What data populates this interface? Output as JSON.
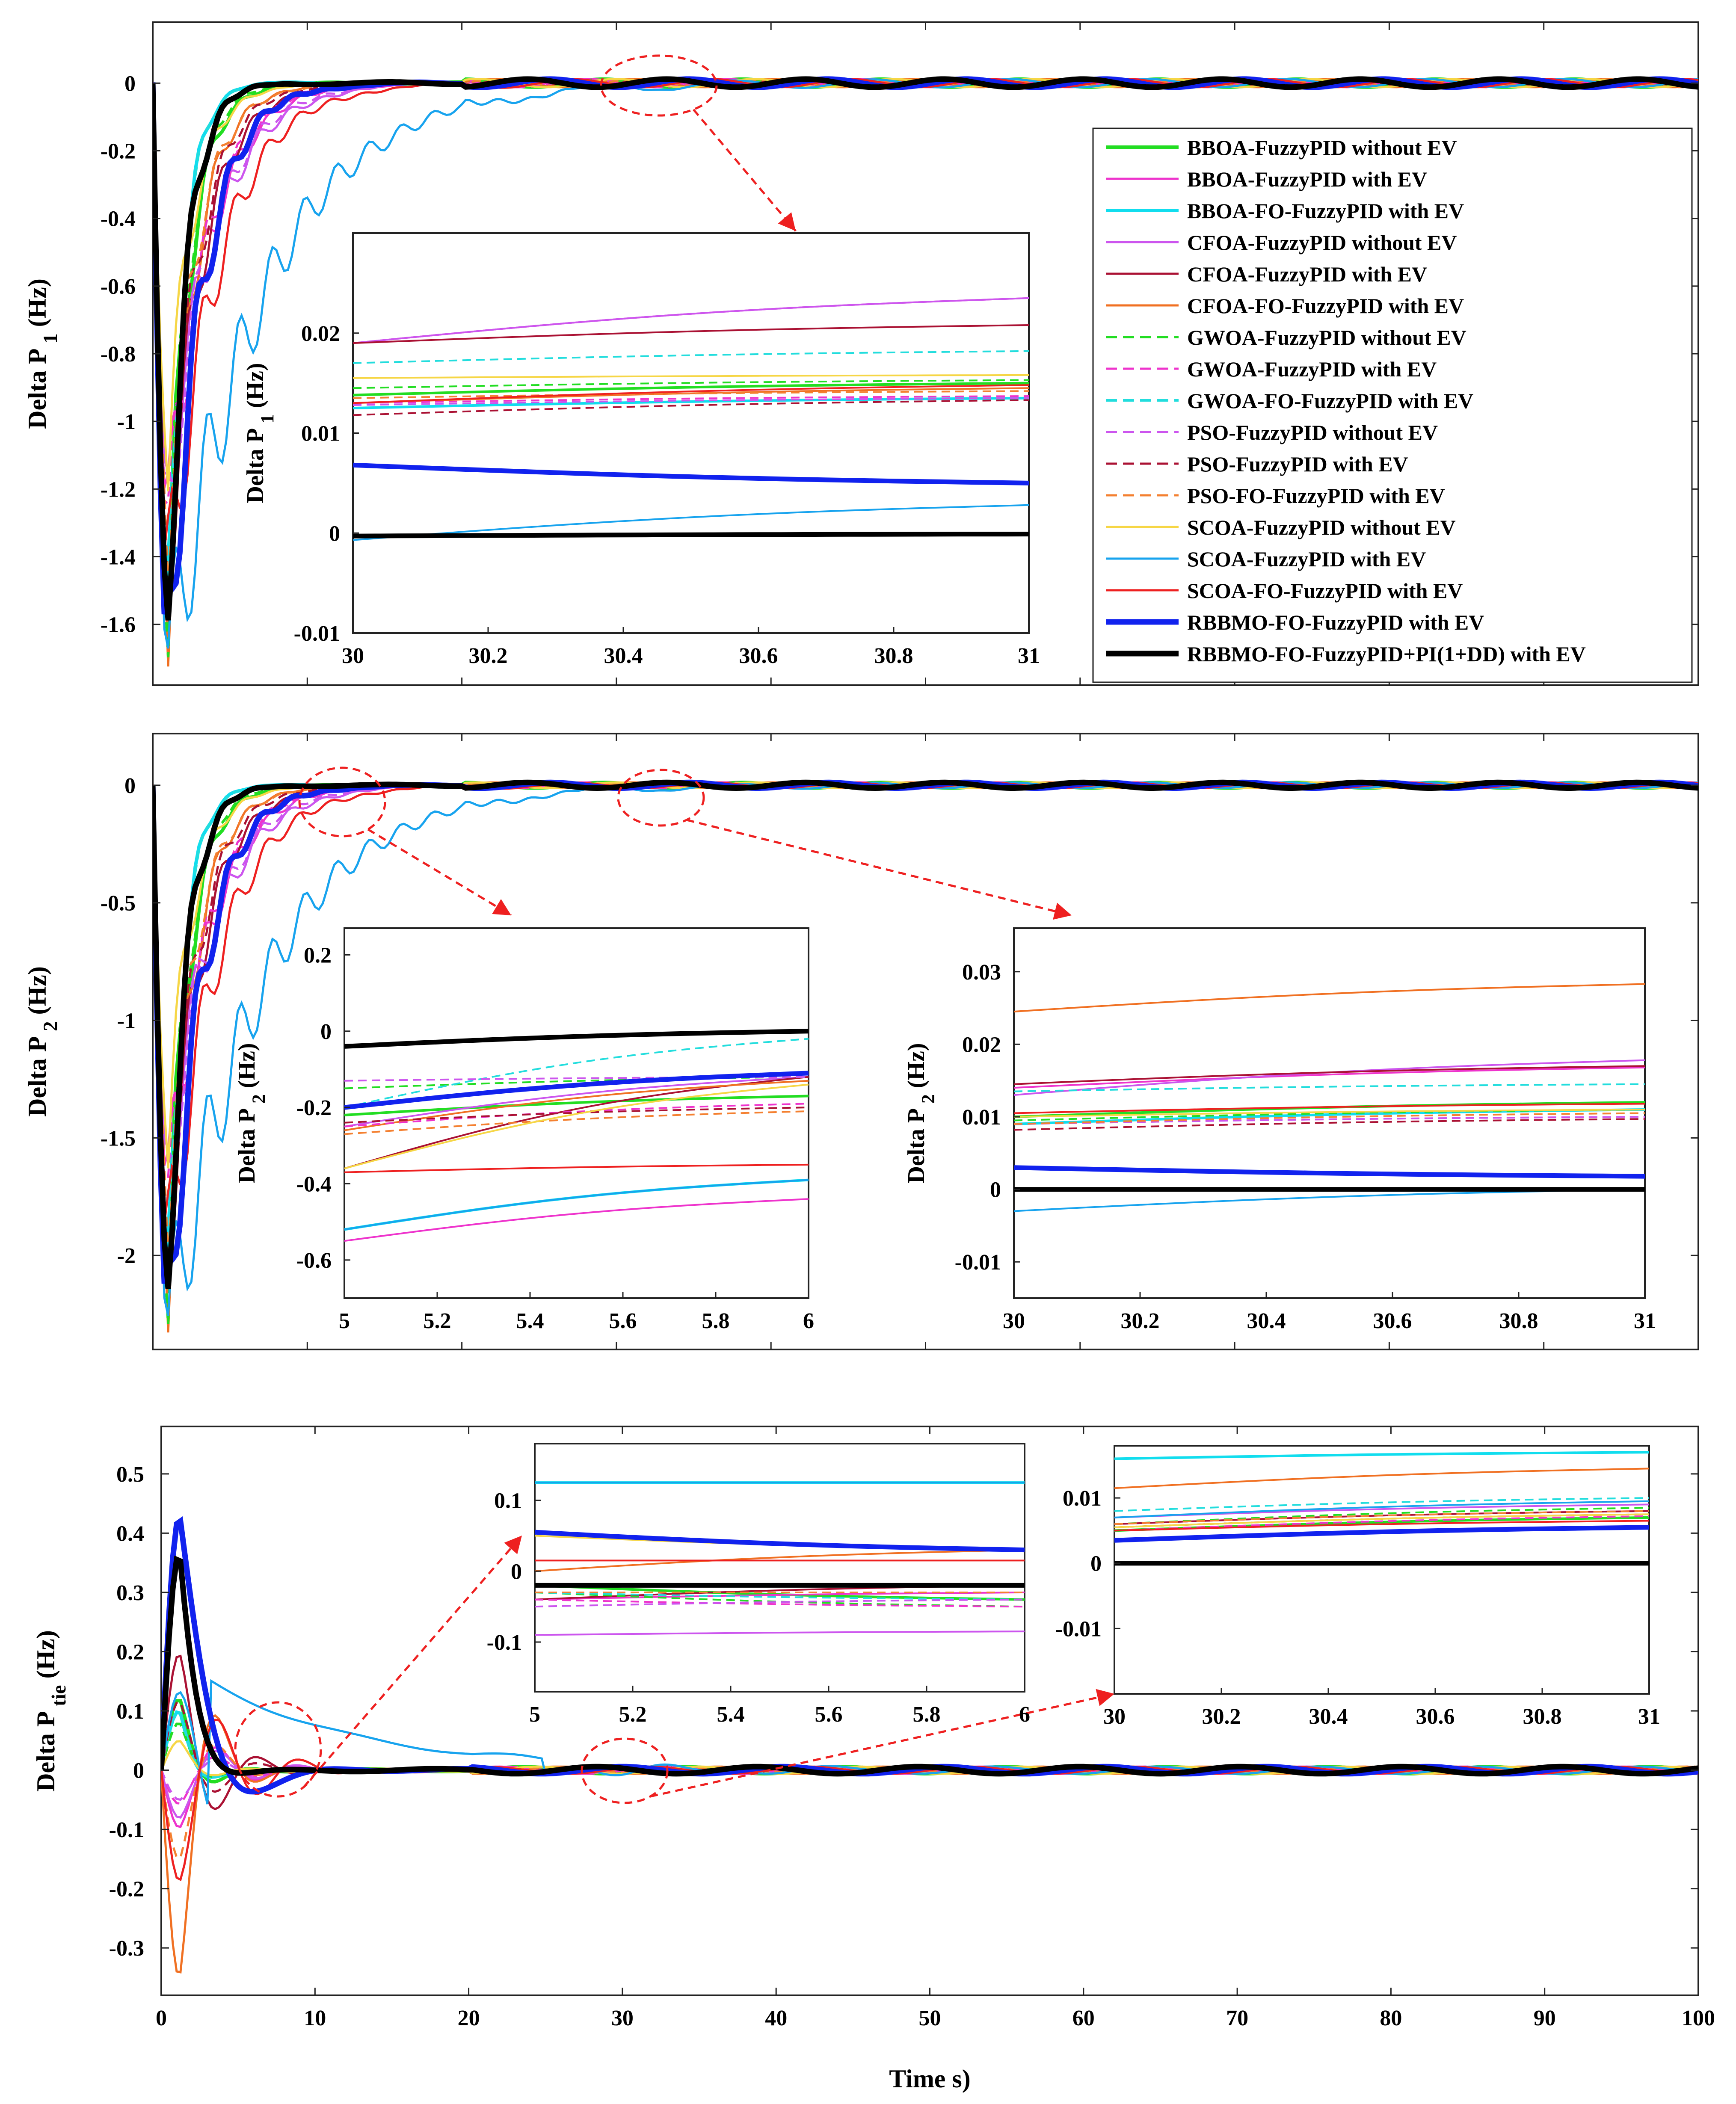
{
  "chart_data": [
    {
      "type": "line",
      "id": "delta_p1",
      "ylabel": "Delta P",
      "ylabel_sub": "1",
      "ylabel_unit": " (Hz)",
      "xlim": [
        0,
        100
      ],
      "ylim": [
        -1.78,
        0.18
      ],
      "yticks": [
        0,
        -0.2,
        -0.4,
        -0.6,
        -0.8,
        -1,
        -1.2,
        -1.4,
        -1.6
      ],
      "ytick_labels": [
        "0",
        "-0.2",
        "-0.4",
        "-0.6",
        "-0.8",
        "-1",
        "-1.2",
        "-1.4",
        "-1.6"
      ],
      "inset": {
        "ylabel": "Delta P",
        "ylabel_sub": "1",
        "ylabel_unit": " (Hz)",
        "xlim": [
          30,
          31
        ],
        "ylim": [
          -0.01,
          0.03
        ],
        "xticks": [
          30,
          30.2,
          30.4,
          30.6,
          30.8,
          31
        ],
        "xtick_labels": [
          "30",
          "30.2",
          "30.4",
          "30.6",
          "30.8",
          "31"
        ],
        "yticks": [
          0.02,
          0.01,
          0,
          -0.01
        ],
        "ytick_labels": [
          "0.02",
          "0.01",
          "0",
          "-0.01"
        ],
        "series_values": [
          [
            0.0138,
            0.015
          ],
          [
            0.019,
            0.0235
          ],
          [
            0.0125,
            0.0135
          ],
          [
            0.019,
            0.0235
          ],
          [
            0.019,
            0.0208
          ],
          [
            0.013,
            0.0145
          ],
          [
            0.0145,
            0.0153
          ],
          [
            0.013,
            0.0137
          ],
          [
            0.017,
            0.0182
          ],
          [
            0.0128,
            0.0135
          ],
          [
            0.0118,
            0.0133
          ],
          [
            0.0135,
            0.0142
          ],
          [
            0.0155,
            0.0158
          ],
          [
            -0.0007,
            0.0028
          ],
          [
            0.013,
            0.0148
          ],
          [
            0.0068,
            0.005
          ],
          [
            -0.0003,
            -0.0001
          ]
        ]
      }
    },
    {
      "type": "line",
      "id": "delta_p2",
      "ylabel": "Delta P",
      "ylabel_sub": "2",
      "ylabel_unit": " (Hz)",
      "xlim": [
        0,
        100
      ],
      "ylim": [
        -2.4,
        0.22
      ],
      "yticks": [
        0,
        -0.5,
        -1,
        -1.5,
        -2
      ],
      "ytick_labels": [
        "0",
        "-0.5",
        "-1",
        "-1.5",
        "-2"
      ],
      "insets": [
        {
          "ylabel": "Delta P",
          "ylabel_sub": "2",
          "ylabel_unit": " (Hz)",
          "xlim": [
            5,
            6
          ],
          "ylim": [
            -0.7,
            0.27
          ],
          "xticks": [
            5,
            5.2,
            5.4,
            5.6,
            5.8,
            6
          ],
          "xtick_labels": [
            "5",
            "5.2",
            "5.4",
            "5.6",
            "5.8",
            "6"
          ],
          "yticks": [
            0.2,
            0,
            -0.2,
            -0.4,
            -0.6
          ],
          "ytick_labels": [
            "0.2",
            "0",
            "-0.2",
            "-0.4",
            "-0.6"
          ],
          "series_values": [
            [
              -0.22,
              -0.17
            ],
            [
              -0.55,
              -0.44
            ],
            [
              -0.52,
              -0.39
            ],
            [
              -0.25,
              -0.12
            ],
            [
              -0.36,
              -0.12
            ],
            [
              -0.26,
              -0.13
            ],
            [
              -0.15,
              -0.12
            ],
            [
              -0.25,
              -0.19
            ],
            [
              -0.2,
              -0.02
            ],
            [
              -0.13,
              -0.12
            ],
            [
              -0.24,
              -0.2
            ],
            [
              -0.27,
              -0.21
            ],
            [
              -0.36,
              -0.14
            ],
            [
              -0.52,
              -0.39
            ],
            [
              -0.37,
              -0.35
            ],
            [
              -0.2,
              -0.11
            ],
            [
              -0.04,
              0.0
            ]
          ]
        },
        {
          "ylabel": "Delta P",
          "ylabel_sub": "2",
          "ylabel_unit": " (Hz)",
          "xlim": [
            30,
            31
          ],
          "ylim": [
            -0.015,
            0.036
          ],
          "xticks": [
            30,
            30.2,
            30.4,
            30.6,
            30.8,
            31
          ],
          "xtick_labels": [
            "30",
            "30.2",
            "30.4",
            "30.6",
            "30.8",
            "31"
          ],
          "yticks": [
            0.03,
            0.02,
            0.01,
            0,
            -0.01
          ],
          "ytick_labels": [
            "0.03",
            "0.02",
            "0.01",
            "0",
            "-0.01"
          ],
          "series_values": [
            [
              0.01,
              0.012
            ],
            [
              0.014,
              0.0168
            ],
            [
              0.009,
              0.011
            ],
            [
              0.013,
              0.0178
            ],
            [
              0.0145,
              0.017
            ],
            [
              0.0245,
              0.0283
            ],
            [
              0.0095,
              0.011
            ],
            [
              0.009,
              0.01
            ],
            [
              0.0135,
              0.0145
            ],
            [
              0.009,
              0.01
            ],
            [
              0.0082,
              0.0097
            ],
            [
              0.009,
              0.0105
            ],
            [
              0.01,
              0.011
            ],
            [
              -0.003,
              0.0
            ],
            [
              0.0105,
              0.0118
            ],
            [
              0.003,
              0.0018
            ],
            [
              0.0,
              0.0
            ]
          ]
        }
      ]
    },
    {
      "type": "line",
      "id": "delta_ptie",
      "ylabel": "Delta P",
      "ylabel_sub": "tie",
      "ylabel_unit": " (Hz)",
      "xlabel": "Time s)",
      "xlim": [
        0,
        100
      ],
      "ylim": [
        -0.38,
        0.58
      ],
      "xticks": [
        0,
        10,
        20,
        30,
        40,
        50,
        60,
        70,
        80,
        90,
        100
      ],
      "xtick_labels": [
        "0",
        "10",
        "20",
        "30",
        "40",
        "50",
        "60",
        "70",
        "80",
        "90",
        "100"
      ],
      "yticks": [
        0.5,
        0.4,
        0.3,
        0.2,
        0.1,
        0,
        -0.1,
        -0.2,
        -0.3
      ],
      "ytick_labels": [
        "0.5",
        "0.4",
        "0.3",
        "0.2",
        "0.1",
        "0",
        "-0.1",
        "-0.2",
        "-0.3"
      ],
      "insets": [
        {
          "xlim": [
            5,
            6
          ],
          "ylim": [
            -0.17,
            0.18
          ],
          "xticks": [
            5,
            5.2,
            5.4,
            5.6,
            5.8,
            6
          ],
          "xtick_labels": [
            "5",
            "5.2",
            "5.4",
            "5.6",
            "5.8",
            "6"
          ],
          "yticks": [
            0.1,
            0,
            -0.1
          ],
          "ytick_labels": [
            "0.1",
            "0",
            "-0.1"
          ],
          "series_values": [
            [
              -0.02,
              -0.04
            ],
            [
              -0.04,
              -0.03
            ],
            [
              0.125,
              0.125
            ],
            [
              -0.09,
              -0.085
            ],
            [
              -0.04,
              -0.02
            ],
            [
              0.0,
              0.03
            ],
            [
              -0.03,
              -0.05
            ],
            [
              -0.04,
              -0.05
            ],
            [
              -0.03,
              -0.04
            ],
            [
              -0.05,
              -0.04
            ],
            [
              -0.03,
              -0.03
            ],
            [
              -0.03,
              -0.03
            ],
            [
              0.05,
              0.03
            ],
            [
              0.125,
              0.125
            ],
            [
              0.015,
              0.015
            ],
            [
              0.055,
              0.03
            ],
            [
              -0.02,
              -0.02
            ]
          ]
        },
        {
          "xlim": [
            30,
            31
          ],
          "ylim": [
            -0.02,
            0.018
          ],
          "xticks": [
            30,
            30.2,
            30.4,
            30.6,
            30.8,
            31
          ],
          "xtick_labels": [
            "30",
            "30.2",
            "30.4",
            "30.6",
            "30.8",
            "31"
          ],
          "yticks": [
            0.01,
            0,
            -0.01
          ],
          "ytick_labels": [
            "0.01",
            "0",
            "-0.01"
          ],
          "series_values": [
            [
              0.005,
              0.007
            ],
            [
              0.006,
              0.008
            ],
            [
              0.016,
              0.017
            ],
            [
              0.007,
              0.009
            ],
            [
              0.006,
              0.008
            ],
            [
              0.0115,
              0.0145
            ],
            [
              0.006,
              0.0085
            ],
            [
              0.005,
              0.0072
            ],
            [
              0.008,
              0.01
            ],
            [
              0.006,
              0.008
            ],
            [
              0.0055,
              0.0075
            ],
            [
              0.006,
              0.008
            ],
            [
              0.0055,
              0.0075
            ],
            [
              0.007,
              0.0095
            ],
            [
              0.005,
              0.0065
            ],
            [
              0.0035,
              0.0055
            ],
            [
              0.0,
              0.0
            ]
          ]
        }
      ]
    }
  ],
  "series": [
    {
      "name": "BBOA-FuzzyPID without EV",
      "color": "#22dd22",
      "dash": false,
      "width": 8
    },
    {
      "name": "BBOA-FuzzyPID with EV",
      "color": "#ee33cc",
      "dash": false,
      "width": 5
    },
    {
      "name": "BBOA-FO-FuzzyPID with EV",
      "color": "#11ddee",
      "dash": false,
      "width": 8
    },
    {
      "name": "CFOA-FuzzyPID without EV",
      "color": "#cc55ee",
      "dash": false,
      "width": 5
    },
    {
      "name": "CFOA-FuzzyPID with EV",
      "color": "#aa1133",
      "dash": false,
      "width": 5
    },
    {
      "name": "CFOA-FO-FuzzyPID with EV",
      "color": "#f07022",
      "dash": false,
      "width": 5
    },
    {
      "name": "GWOA-FuzzyPID without EV",
      "color": "#22dd22",
      "dash": true,
      "width": 6
    },
    {
      "name": "GWOA-FuzzyPID with EV",
      "color": "#ee33cc",
      "dash": true,
      "width": 5
    },
    {
      "name": "GWOA-FO-FuzzyPID with EV",
      "color": "#22dddd",
      "dash": true,
      "width": 6
    },
    {
      "name": "PSO-FuzzyPID without EV",
      "color": "#cc55ee",
      "dash": true,
      "width": 5
    },
    {
      "name": "PSO-FuzzyPID with EV",
      "color": "#aa1133",
      "dash": true,
      "width": 5
    },
    {
      "name": "PSO-FO-FuzzyPID with EV",
      "color": "#f48030",
      "dash": true,
      "width": 5
    },
    {
      "name": "SCOA-FuzzyPID without EV",
      "color": "#f6d645",
      "dash": false,
      "width": 5
    },
    {
      "name": "SCOA-FuzzyPID with EV",
      "color": "#17a3ee",
      "dash": false,
      "width": 5
    },
    {
      "name": "SCOA-FO-FuzzyPID with EV",
      "color": "#ee2020",
      "dash": false,
      "width": 5
    },
    {
      "name": "RBBMO-FO-FuzzyPID with EV",
      "color": "#1122ee",
      "dash": false,
      "width": 13
    },
    {
      "name": "RBBMO-FO-FuzzyPID+PI(1+DD) with EV",
      "color": "#000000",
      "dash": false,
      "width": 13
    }
  ]
}
